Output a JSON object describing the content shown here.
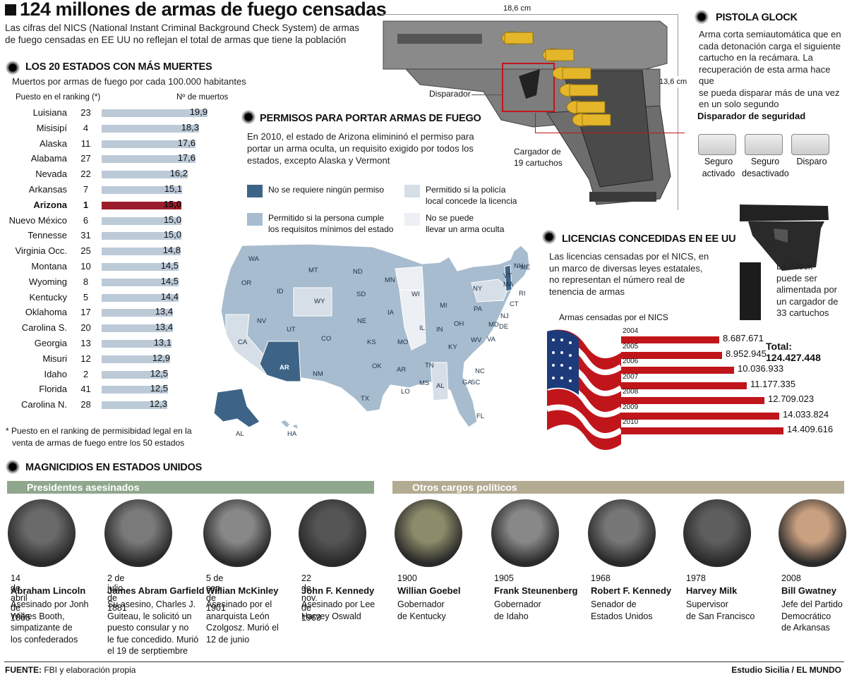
{
  "header": {
    "title": "124 millones de armas de fuego censadas",
    "subtitle_1": "Las cifras del NICS (National Instant Criminal Background Check System) de armas",
    "subtitle_2": "de fuego censadas en EE UU no reflejan el total de armas que tiene la población"
  },
  "ranking": {
    "title": "LOS 20 ESTADOS CON MÁS MUERTES",
    "subtitle": "Muertos por armas de fuego por cada 100.000 habitantes",
    "col_rank": "Puesto en el ranking (*)",
    "col_deaths": "Nº de muertos",
    "footnote_1": "* Puesto en el ranking de permisibidad legal en la",
    "footnote_2": "venta de armas de fuego entre los 50 estados",
    "rows": [
      {
        "state": "Luisiana",
        "rank": "23",
        "value": 19.9,
        "label": "19,9"
      },
      {
        "state": "Misisipí",
        "rank": "4",
        "value": 18.3,
        "label": "18,3"
      },
      {
        "state": "Alaska",
        "rank": "11",
        "value": 17.6,
        "label": "17,6"
      },
      {
        "state": "Alabama",
        "rank": "27",
        "value": 17.6,
        "label": "17,6"
      },
      {
        "state": "Nevada",
        "rank": "22",
        "value": 16.2,
        "label": "16,2"
      },
      {
        "state": "Arkansas",
        "rank": "7",
        "value": 15.1,
        "label": "15,1"
      },
      {
        "state": "Arizona",
        "rank": "1",
        "value": 15.0,
        "label": "15,0",
        "highlight": true
      },
      {
        "state": "Nuevo México",
        "rank": "6",
        "value": 15.0,
        "label": "15,0"
      },
      {
        "state": "Tennesse",
        "rank": "31",
        "value": 15.0,
        "label": "15,0"
      },
      {
        "state": "Virginia Occ.",
        "rank": "25",
        "value": 14.8,
        "label": "14,8"
      },
      {
        "state": "Montana",
        "rank": "10",
        "value": 14.5,
        "label": "14,5"
      },
      {
        "state": "Wyoming",
        "rank": "8",
        "value": 14.5,
        "label": "14,5"
      },
      {
        "state": "Kentucky",
        "rank": "5",
        "value": 14.4,
        "label": "14,4"
      },
      {
        "state": "Oklahoma",
        "rank": "17",
        "value": 13.4,
        "label": "13,4"
      },
      {
        "state": "Carolina S.",
        "rank": "20",
        "value": 13.4,
        "label": "13,4"
      },
      {
        "state": "Georgia",
        "rank": "13",
        "value": 13.1,
        "label": "13,1"
      },
      {
        "state": "Misuri",
        "rank": "12",
        "value": 12.9,
        "label": "12,9"
      },
      {
        "state": "Idaho",
        "rank": "2",
        "value": 12.5,
        "label": "12,5"
      },
      {
        "state": "Florida",
        "rank": "41",
        "value": 12.5,
        "label": "12,5"
      },
      {
        "state": "Carolina N.",
        "rank": "28",
        "value": 12.3,
        "label": "12,3"
      }
    ]
  },
  "permits": {
    "title": "PERMISOS PARA PORTAR ARMAS DE FUEGO",
    "text_1": "En 2010, el estado de Arizona elimininó el permiso para",
    "text_2": "portar un arma oculta, un requisito exigido por todos los",
    "text_3": "estados, excepto Alaska y Vermont",
    "legend": [
      {
        "l1": "No se requiere ningún permiso",
        "l2": "",
        "color": "#3d6487"
      },
      {
        "l1": "Permitido si la policía",
        "l2": "local concede la licencia",
        "color": "#d6dee7"
      },
      {
        "l1": "Permitido si la persona cumple",
        "l2": "los requisitos mínimos del estado",
        "color": "#a7bccf"
      },
      {
        "l1": "No se puede",
        "l2": "llevar un arma oculta",
        "color": "#eceff3"
      }
    ],
    "states": [
      "WA",
      "MT",
      "ND",
      "MN",
      "ME",
      "OR",
      "ID",
      "SD",
      "WI",
      "MI",
      "NY",
      "VT",
      "NH",
      "MA",
      "RI",
      "CT",
      "WY",
      "IA",
      "NE",
      "NV",
      "UT",
      "CO",
      "KS",
      "IL",
      "IN",
      "OH",
      "PA",
      "NJ",
      "DE",
      "MD",
      "CA",
      "WV",
      "VA",
      "MO",
      "KY",
      "OK",
      "AZ",
      "AR",
      "TN",
      "NC",
      "NM",
      "SC",
      "MS",
      "AL",
      "GA",
      "TX",
      "LA",
      "FL",
      "AL",
      "HA"
    ],
    "state_labels_display": [
      "WA",
      "MT",
      "ND",
      "MN",
      "ME",
      "OR",
      "ID",
      "SD",
      "WI",
      "MI",
      "NY",
      "VT",
      "NH",
      "MA",
      "RI",
      "CT",
      "PA",
      "NJ",
      "WY",
      "IA",
      "NE",
      "NV",
      "UT",
      "CO",
      "KS",
      "IL",
      "IN",
      "OH",
      "MD",
      "DE",
      "CA",
      "WV",
      "VA",
      "MO",
      "KY",
      "OK",
      "AR",
      "TN",
      "NC",
      "NM",
      "SC",
      "MS",
      "AL",
      "GA",
      "TX",
      "LO",
      "FL",
      "AR",
      "AL",
      "HA"
    ],
    "az_label": "AR"
  },
  "glock": {
    "dim_w": "18,6 cm",
    "dim_h": "13,6 cm",
    "trigger": "Disparador",
    "magazine_1": "Cargador de",
    "magazine_2": "19 cartuchos",
    "title": "PISTOLA GLOCK",
    "text": [
      "Arma corta semiautomática que en",
      "cada detonación carga el siguiente",
      "cartucho en la recámara. La",
      "recuperación de esta arma hace que",
      "se pueda disparar más de una vez",
      "en un solo segundo"
    ],
    "safety_title": "Disparador de seguridad",
    "states": [
      {
        "l1": "Seguro",
        "l2": "activado"
      },
      {
        "l1": "Seguro",
        "l2": "desactivado"
      },
      {
        "l1": "Disparo",
        "l2": ""
      }
    ],
    "mag_note": [
      "La Glock",
      "puede ser",
      "alimentada por",
      "un cargador de",
      "33 cartuchos"
    ]
  },
  "licenses": {
    "title": "LICENCIAS CONCEDIDAS EN EE UU",
    "text": [
      "Las licencias censadas por el NICS, en",
      "un marco de diversas leyes estatales,",
      "no representan el número real de",
      "tenencia de armas"
    ],
    "chart_title": "Armas censadas por el NICS",
    "total_label": "Total:",
    "total_value": "124.427.448"
  },
  "chart_data": {
    "type": "bar",
    "title": "Armas censadas por el NICS",
    "categories": [
      "2004",
      "2005",
      "2006",
      "2007",
      "2008",
      "2009",
      "2010"
    ],
    "values": [
      8687671,
      8952945,
      10036933,
      11177335,
      12709023,
      14033824,
      14409616
    ],
    "value_labels": [
      "8.687.671",
      "8.952.945",
      "10.036.933",
      "11.177.335",
      "12.709.023",
      "14.033.824",
      "14.409.616"
    ],
    "bar_color": "#c0161b"
  },
  "magnicides": {
    "title": "MAGNICIDIOS EN ESTADOS UNIDOS",
    "presidents_banner": "Presidentes asesinados",
    "others_banner": "Otros cargos políticos",
    "presidents_color": "#8fa78c",
    "others_color": "#b3ab92",
    "people": [
      {
        "date": "14 de abril de 1865",
        "name": "Abraham Lincoln",
        "desc": [
          "Asesinado por Jonh",
          "Wilkes Booth,",
          "simpatizante de",
          "los confederados"
        ]
      },
      {
        "date": "2 de julio de 1881",
        "name": "James Abram Garfield",
        "desc": [
          "Su asesino, Charles J.",
          "Guiteau, le solicitó un",
          "puesto consular y no",
          "le fue concedido. Murió",
          "el 19 de serptiembre"
        ]
      },
      {
        "date": "5 de sep. de 1901",
        "name": "Willian McKinley",
        "desc": [
          "Asesinado por el",
          "anarquista León",
          "Czolgosz. Murió el",
          "12 de junio"
        ]
      },
      {
        "date": "22 de nov. de 1963",
        "name": "John F. Kennedy",
        "desc": [
          "Asesinado por Lee",
          "Harvey Oswald"
        ]
      },
      {
        "date": "1900",
        "name": "Willian Goebel",
        "desc": [
          "Gobernador",
          "de Kentucky"
        ]
      },
      {
        "date": "1905",
        "name": "Frank Steunenberg",
        "desc": [
          "Gobernador",
          "de Idaho"
        ]
      },
      {
        "date": "1968",
        "name": "Robert F. Kennedy",
        "desc": [
          "Senador de",
          "Estados Unidos"
        ]
      },
      {
        "date": "1978",
        "name": "Harvey Milk",
        "desc": [
          "Supervisor",
          "de San Francisco"
        ]
      },
      {
        "date": "2008",
        "name": "Bill Gwatney",
        "desc": [
          "Jefe del Partido",
          "Democrático",
          "de Arkansas"
        ]
      }
    ]
  },
  "footer": {
    "source_label": "FUENTE:",
    "source_text": "FBI y elaboración propia",
    "credit": "Estudio Sicilia / EL MUNDO"
  }
}
